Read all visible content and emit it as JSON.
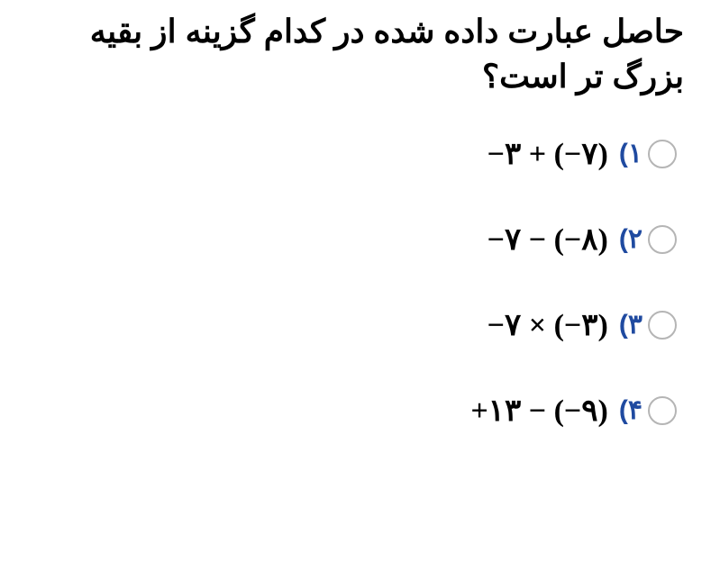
{
  "question": "حاصل عبارت داده شده در کدام گزینه از بقیه بزرگ تر است؟",
  "options": [
    {
      "num": "۱)",
      "expr": "−۳ + (−۷)"
    },
    {
      "num": "۲)",
      "expr": "−۷ − (−۸)"
    },
    {
      "num": "۳)",
      "expr": "−۷ × (−۳)"
    },
    {
      "num": "۴)",
      "expr": "+۱۳ − (−۹)"
    }
  ],
  "colors": {
    "option_number": "#1f4aa0",
    "text": "#000000",
    "radio_border": "#b5b5b5",
    "background": "#ffffff"
  },
  "typography": {
    "question_fontsize": 36,
    "question_weight": 900,
    "option_num_fontsize": 30,
    "option_num_weight": 900,
    "expr_fontsize": 34,
    "expr_weight": 700
  }
}
